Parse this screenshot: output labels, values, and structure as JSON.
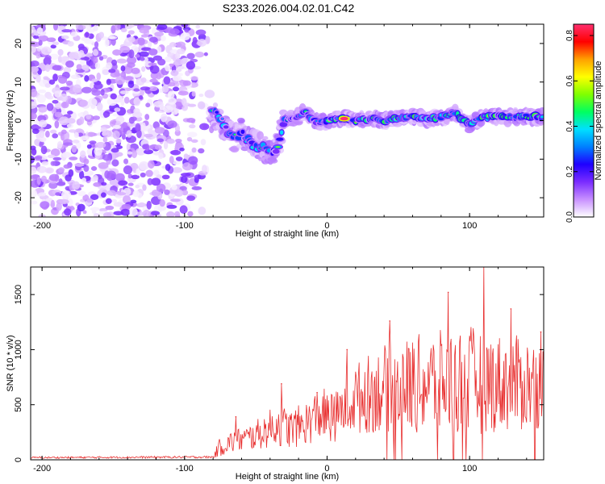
{
  "title": "S233.2026.004.02.01.C42",
  "chart_data": [
    {
      "type": "heatmap",
      "xlabel": "Height of straight line (km)",
      "ylabel": "Frequency (Hz)",
      "xlim": [
        -208,
        152
      ],
      "ylim": [
        -25,
        25
      ],
      "x_ticks": [
        -200,
        -100,
        0,
        100
      ],
      "y_ticks": [
        -20,
        -10,
        0,
        10,
        20
      ],
      "x_tick_labels": [
        "-200",
        "-100",
        "0",
        "100"
      ],
      "y_tick_labels": [
        "-20",
        "-10",
        "0",
        "10",
        "20"
      ],
      "noise_region_x": [
        -208,
        -81
      ],
      "signal_track": [
        {
          "x": -80,
          "f": 2.0
        },
        {
          "x": -75,
          "f": 0.5
        },
        {
          "x": -70,
          "f": -2.5
        },
        {
          "x": -65,
          "f": -4.5
        },
        {
          "x": -60,
          "f": -3.0
        },
        {
          "x": -55,
          "f": -5.5
        },
        {
          "x": -50,
          "f": -6.5
        },
        {
          "x": -45,
          "f": -7.0
        },
        {
          "x": -40,
          "f": -8.0
        },
        {
          "x": -35,
          "f": -7.0
        },
        {
          "x": -30,
          "f": 0.0
        },
        {
          "x": -25,
          "f": 0.5
        },
        {
          "x": -20,
          "f": 1.0
        },
        {
          "x": -15,
          "f": 2.5
        },
        {
          "x": -10,
          "f": 0.0
        },
        {
          "x": -5,
          "f": -0.5
        },
        {
          "x": 0,
          "f": 0.0
        },
        {
          "x": 10,
          "f": 0.5
        },
        {
          "x": 20,
          "f": 0.0
        },
        {
          "x": 30,
          "f": 0.5
        },
        {
          "x": 40,
          "f": 0.0
        },
        {
          "x": 50,
          "f": 0.5
        },
        {
          "x": 60,
          "f": 1.0
        },
        {
          "x": 70,
          "f": 0.5
        },
        {
          "x": 80,
          "f": 1.0
        },
        {
          "x": 90,
          "f": 2.0
        },
        {
          "x": 100,
          "f": -1.0
        },
        {
          "x": 110,
          "f": 1.0
        },
        {
          "x": 120,
          "f": 1.0
        },
        {
          "x": 130,
          "f": 1.0
        },
        {
          "x": 140,
          "f": 1.0
        },
        {
          "x": 150,
          "f": 1.0
        }
      ],
      "peak": {
        "x": 12,
        "f": 0.5,
        "amplitude": 0.85
      }
    },
    {
      "type": "line",
      "xlabel": "Height of straight line (km)",
      "ylabel": "SNR (10 * v/v)",
      "xlim": [
        -208,
        152
      ],
      "ylim": [
        0,
        1750
      ],
      "x_ticks": [
        -200,
        -100,
        0,
        100
      ],
      "y_ticks": [
        0,
        500,
        1000,
        1500
      ],
      "x_tick_labels": [
        "-200",
        "-100",
        "0",
        "100"
      ],
      "y_tick_labels": [
        "0",
        "500",
        "1000",
        "1500"
      ],
      "envelope": {
        "x": [
          -208,
          -80,
          -75,
          -65,
          -55,
          -45,
          -35,
          -25,
          -15,
          -5,
          5,
          15,
          25,
          40,
          60,
          80,
          100,
          120,
          152
        ],
        "mean": [
          20,
          25,
          120,
          170,
          200,
          250,
          320,
          280,
          330,
          420,
          380,
          520,
          580,
          650,
          680,
          700,
          720,
          700,
          680
        ],
        "amplitude": [
          8,
          10,
          90,
          110,
          120,
          150,
          200,
          180,
          200,
          250,
          220,
          300,
          350,
          400,
          450,
          480,
          500,
          450,
          420
        ]
      },
      "peaks": [
        {
          "x": -64,
          "y": 390
        },
        {
          "x": -32,
          "y": 690
        },
        {
          "x": -7,
          "y": 610
        },
        {
          "x": 14,
          "y": 1000
        },
        {
          "x": 44,
          "y": 1260
        },
        {
          "x": 85,
          "y": 1520
        },
        {
          "x": 110,
          "y": 1760
        },
        {
          "x": 129,
          "y": 1370
        },
        {
          "x": 150,
          "y": 1160
        }
      ]
    }
  ],
  "colorbar": {
    "label": "Normalized spectral amplitude",
    "range": [
      0,
      0.85
    ],
    "ticks": [
      0.0,
      0.2,
      0.4,
      0.6,
      0.8
    ],
    "tick_labels": [
      "0.0",
      "0.2",
      "0.4",
      "0.6",
      "0.8"
    ],
    "colors": [
      "#ffffff",
      "#c890ff",
      "#7a2cff",
      "#1f00ff",
      "#0080ff",
      "#00e0ff",
      "#00ff60",
      "#80ff00",
      "#ffff00",
      "#ffa000",
      "#ff0000",
      "#ff3070"
    ]
  },
  "series_color": "#e83030"
}
